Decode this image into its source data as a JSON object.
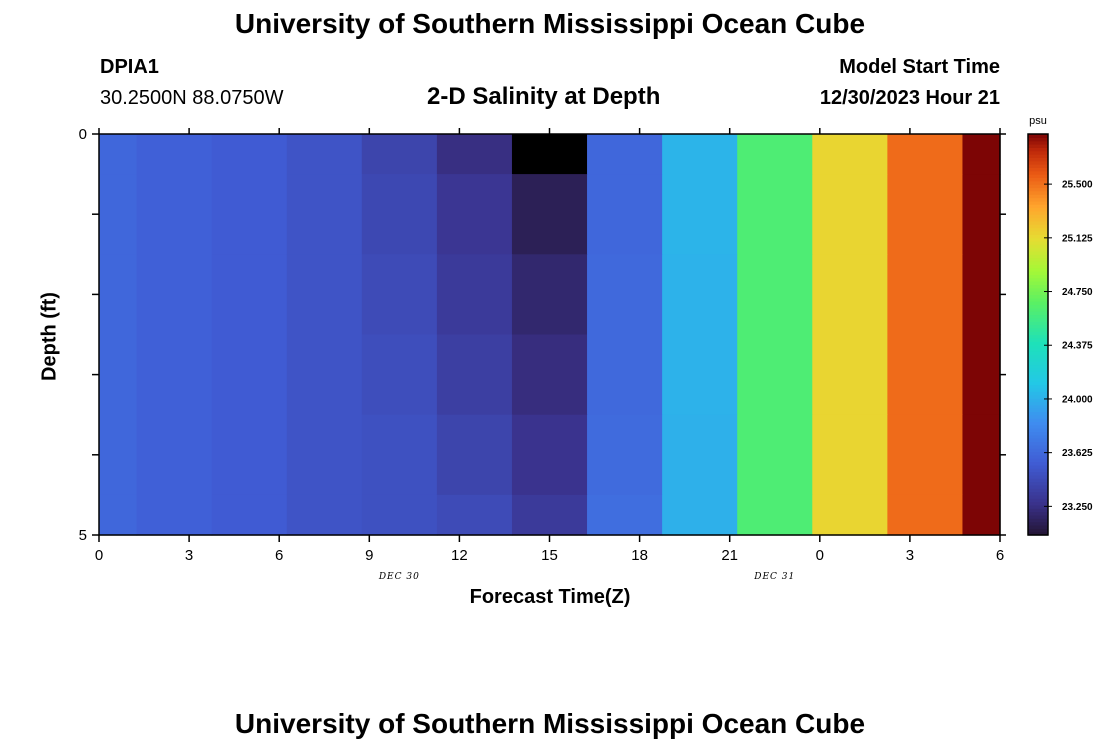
{
  "header": {
    "title": "University of Southern Mississippi Ocean Cube",
    "station_id": "DPIA1",
    "coords": "30.2500N  88.0750W",
    "plot_title": "2-D Salinity at Depth",
    "model_start_label": "Model Start Time",
    "model_start_value": "12/30/2023 Hour 21"
  },
  "footer": {
    "title": "University of Southern Mississippi Ocean Cube"
  },
  "chart_data": {
    "type": "heatmap",
    "title": "2-D Salinity at Depth",
    "xlabel": "Forecast Time(Z)",
    "ylabel": "Depth (ft)",
    "x_tick_labels": [
      "0",
      "3",
      "6",
      "9",
      "12",
      "15",
      "18",
      "21",
      "0",
      "3",
      "6"
    ],
    "x_date_labels": [
      {
        "label": "DEC 30",
        "at_hour": 12
      },
      {
        "label": "DEC 31",
        "at_hour": 27
      }
    ],
    "x_range_hours": [
      0,
      36
    ],
    "y_tick_labels": [
      "0",
      "5"
    ],
    "y_range": [
      0,
      5
    ],
    "y_reversed": true,
    "columns_center_hours": [
      0,
      3,
      6,
      9,
      12,
      15,
      18,
      21,
      24,
      27,
      30,
      33,
      36
    ],
    "depth_layers": [
      [
        0,
        0.5
      ],
      [
        0.5,
        1.5
      ],
      [
        1.5,
        2.5
      ],
      [
        2.5,
        3.5
      ],
      [
        3.5,
        4.5
      ],
      [
        4.5,
        5
      ]
    ],
    "salinity_psu": [
      [
        23.62,
        23.58,
        23.55,
        23.5,
        23.4,
        23.25,
        23.05,
        23.62,
        24.02,
        24.62,
        25.15,
        25.52,
        25.85
      ],
      [
        23.62,
        23.58,
        23.55,
        23.5,
        23.42,
        23.3,
        23.14,
        23.62,
        24.02,
        24.62,
        25.15,
        25.52,
        25.85
      ],
      [
        23.62,
        23.58,
        23.55,
        23.5,
        23.44,
        23.33,
        23.2,
        23.63,
        24.01,
        24.62,
        25.15,
        25.52,
        25.85
      ],
      [
        23.62,
        23.58,
        23.55,
        23.5,
        23.46,
        23.36,
        23.24,
        23.63,
        24.01,
        24.62,
        25.15,
        25.52,
        25.85
      ],
      [
        23.62,
        23.58,
        23.55,
        23.5,
        23.48,
        23.4,
        23.28,
        23.64,
        24.0,
        24.62,
        25.15,
        25.52,
        25.85
      ],
      [
        23.62,
        23.58,
        23.55,
        23.5,
        23.48,
        23.44,
        23.33,
        23.66,
        24.0,
        24.62,
        25.15,
        25.52,
        25.85
      ]
    ],
    "colorbar": {
      "unit": "psu",
      "labels": [
        "23.250",
        "23.625",
        "24.000",
        "24.375",
        "24.750",
        "25.125",
        "25.500"
      ],
      "range": [
        23.05,
        25.85
      ],
      "colormap": "turbo"
    },
    "grid": false,
    "legend": "colorbar-right"
  }
}
